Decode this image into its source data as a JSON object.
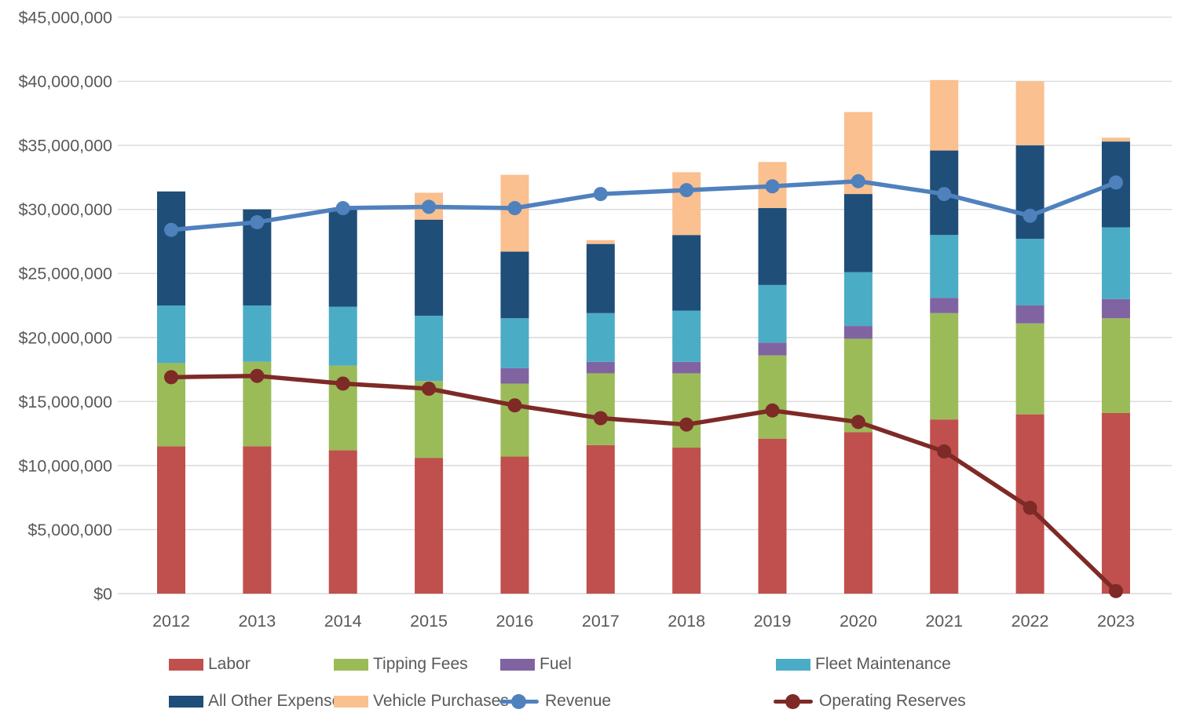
{
  "chart_data": {
    "type": "combo-stacked-bar-line",
    "unit": "USD",
    "categories": [
      "2012",
      "2013",
      "2014",
      "2015",
      "2016",
      "2017",
      "2018",
      "2019",
      "2020",
      "2021",
      "2022",
      "2023"
    ],
    "series": [
      {
        "key": "labor",
        "name": "Labor",
        "color": "#C0504D",
        "values": [
          11500000,
          11500000,
          11200000,
          10600000,
          10700000,
          11600000,
          11400000,
          12100000,
          12600000,
          13600000,
          14000000,
          14100000
        ]
      },
      {
        "key": "tipping_fees",
        "name": "Tipping Fees",
        "color": "#9BBB59",
        "values": [
          6500000,
          6600000,
          6600000,
          6000000,
          5700000,
          5600000,
          5800000,
          6500000,
          7300000,
          8300000,
          7100000,
          7400000
        ]
      },
      {
        "key": "fuel",
        "name": "Fuel",
        "color": "#8064A2",
        "values": [
          0,
          0,
          0,
          0,
          1200000,
          900000,
          900000,
          1000000,
          1000000,
          1200000,
          1400000,
          1500000
        ]
      },
      {
        "key": "fleet_maintenance",
        "name": "Fleet Maintenance",
        "color": "#4BACC6",
        "values": [
          4500000,
          4400000,
          4600000,
          5100000,
          3900000,
          3800000,
          4000000,
          4500000,
          4200000,
          4900000,
          5200000,
          5600000
        ]
      },
      {
        "key": "all_other_expenses",
        "name": "All Other Expenses",
        "color": "#1F4E79",
        "values": [
          8900000,
          7500000,
          7700000,
          7500000,
          5200000,
          5400000,
          5900000,
          6000000,
          6100000,
          6600000,
          7300000,
          6700000
        ]
      },
      {
        "key": "vehicle_purchases",
        "name": "Vehicle Purchases",
        "color": "#FAC090",
        "values": [
          0,
          0,
          0,
          2100000,
          6000000,
          300000,
          4900000,
          3600000,
          6400000,
          5500000,
          5000000,
          300000
        ]
      }
    ],
    "lines": [
      {
        "key": "revenue",
        "name": "Revenue",
        "color": "#4F81BD",
        "values": [
          28400000,
          29000000,
          30100000,
          30200000,
          30100000,
          31200000,
          31500000,
          31800000,
          32200000,
          31200000,
          29500000,
          32100000
        ]
      },
      {
        "key": "operating_reserves",
        "name": "Operating Reserves",
        "color": "#7E2A27",
        "values": [
          16900000,
          17000000,
          16400000,
          16000000,
          14700000,
          13700000,
          13200000,
          14300000,
          13400000,
          11100000,
          6700000,
          200000
        ]
      }
    ],
    "y_axis": {
      "min": 0,
      "max": 45000000,
      "tick_step": 5000000,
      "ticks": [
        {
          "value": 0,
          "label": "$0"
        },
        {
          "value": 5000000,
          "label": "$5,000,000"
        },
        {
          "value": 10000000,
          "label": "$10,000,000"
        },
        {
          "value": 15000000,
          "label": "$15,000,000"
        },
        {
          "value": 20000000,
          "label": "$20,000,000"
        },
        {
          "value": 25000000,
          "label": "$25,000,000"
        },
        {
          "value": 30000000,
          "label": "$30,000,000"
        },
        {
          "value": 35000000,
          "label": "$35,000,000"
        },
        {
          "value": 40000000,
          "label": "$40,000,000"
        },
        {
          "value": 45000000,
          "label": "$45,000,000"
        }
      ]
    },
    "legend": {
      "position": "bottom",
      "rows": [
        [
          "labor",
          "tipping_fees",
          "fuel",
          "fleet_maintenance"
        ],
        [
          "all_other_expenses",
          "vehicle_purchases",
          "revenue",
          "operating_reserves"
        ]
      ]
    },
    "style": {
      "background": "#FFFFFF",
      "gridline_color": "#D9D9D9",
      "axis_text_color": "#595959",
      "grid": "horizontal"
    }
  }
}
